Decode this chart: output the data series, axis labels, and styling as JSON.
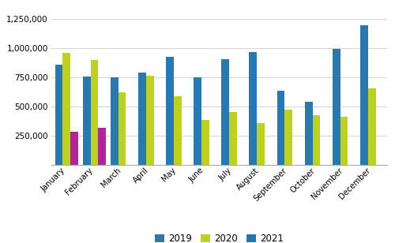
{
  "months": [
    "January",
    "February",
    "March",
    "April",
    "May",
    "June",
    "July",
    "August",
    "September",
    "October",
    "November",
    "December"
  ],
  "series_2019": [
    860000,
    755000,
    750000,
    795000,
    930000,
    750000,
    905000,
    965000,
    635000,
    545000,
    995000,
    1195000
  ],
  "series_2020": [
    960000,
    900000,
    625000,
    765000,
    590000,
    390000,
    455000,
    360000,
    475000,
    430000,
    415000,
    660000
  ],
  "series_2021": [
    285000,
    320000,
    null,
    null,
    null,
    null,
    null,
    null,
    null,
    null,
    null,
    null
  ],
  "color_2019": "#2779B0",
  "color_2020": "#BDD120",
  "color_2021": "#B0269A",
  "ylim": [
    0,
    1350000
  ],
  "yticks": [
    250000,
    500000,
    750000,
    1000000,
    1250000
  ],
  "legend_labels": [
    "2019",
    "2020",
    "2021"
  ],
  "background_color": "#ffffff",
  "grid_color": "#cccccc"
}
